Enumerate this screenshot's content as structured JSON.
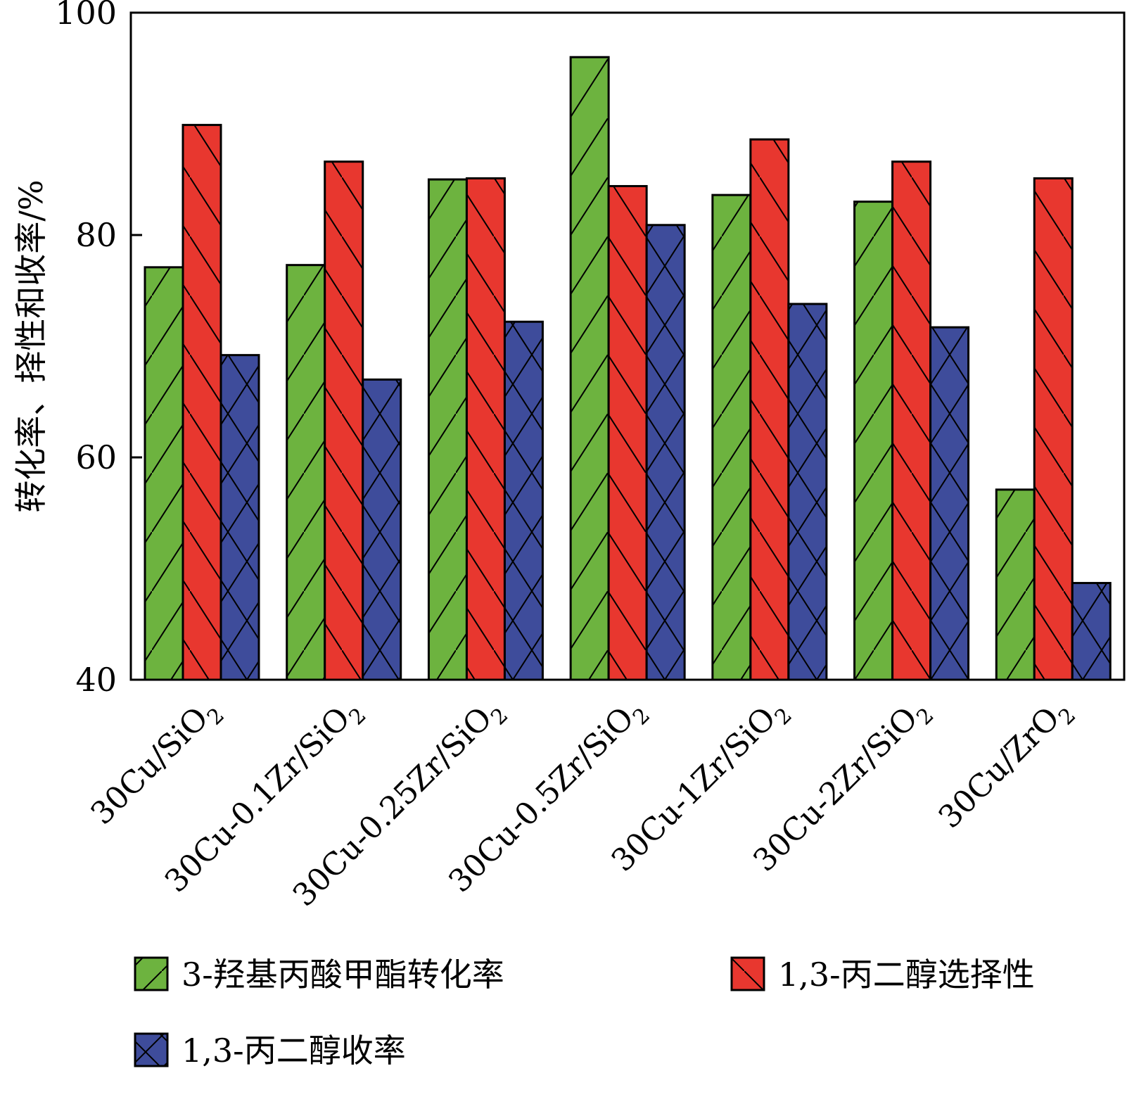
{
  "chart_data": {
    "type": "bar",
    "title": "",
    "xlabel": "",
    "ylabel": "转化率、择性和收率/%",
    "ylim": [
      40,
      100
    ],
    "yticks": [
      40,
      60,
      80,
      100
    ],
    "grid": false,
    "legend_position": "bottom",
    "categories": [
      {
        "main": "30Cu/SiO",
        "sub": "2"
      },
      {
        "main": "30Cu-0.1Zr/SiO",
        "sub": "2"
      },
      {
        "main": "30Cu-0.25Zr/SiO",
        "sub": "2"
      },
      {
        "main": "30Cu-0.5Zr/SiO",
        "sub": "2"
      },
      {
        "main": "30Cu-1Zr/SiO",
        "sub": "2"
      },
      {
        "main": "30Cu-2Zr/SiO",
        "sub": "2"
      },
      {
        "main": "30Cu/ZrO",
        "sub": "2"
      }
    ],
    "series": [
      {
        "name": "3-羟基丙酸甲酯转化率",
        "color": "#6db33f",
        "hatch": "forward",
        "values": [
          77.1,
          77.3,
          85.0,
          96.0,
          83.6,
          83.0,
          57.1
        ]
      },
      {
        "name": "1,3-丙二醇选择性",
        "color": "#e8372f",
        "hatch": "backward",
        "values": [
          89.9,
          86.6,
          85.1,
          84.4,
          88.6,
          86.6,
          85.1
        ]
      },
      {
        "name": "1,3-丙二醇收率",
        "color": "#3e4c9b",
        "hatch": "cross",
        "values": [
          69.2,
          67.0,
          72.2,
          80.9,
          73.8,
          71.7,
          48.7
        ]
      }
    ]
  }
}
